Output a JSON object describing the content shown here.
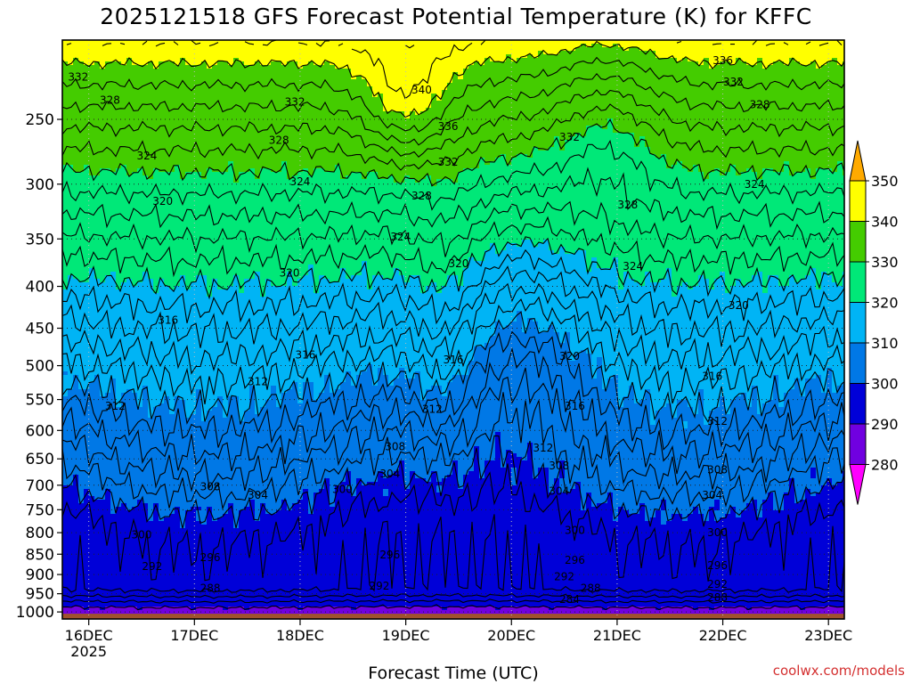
{
  "chart_data": {
    "type": "heatmap",
    "title": "2025121518 GFS Forecast Potential Temperature (K) for KFFC",
    "xlabel": "Forecast Time (UTC)",
    "ylabel": "",
    "x_ticks": [
      "16DEC",
      "17DEC",
      "18DEC",
      "19DEC",
      "20DEC",
      "21DEC",
      "22DEC",
      "23DEC"
    ],
    "x_year": "2025",
    "x_range_days": [
      -0.25,
      7.15
    ],
    "y_ticks": [
      250,
      300,
      350,
      400,
      450,
      500,
      550,
      600,
      650,
      700,
      750,
      800,
      850,
      900,
      950,
      1000
    ],
    "y_range": [
      200,
      1020
    ],
    "y_scale": "log",
    "grid": true,
    "colorbar": {
      "labels": [
        350,
        340,
        330,
        320,
        310,
        300,
        290,
        280
      ],
      "position": "right",
      "colors": [
        "#ffaa00",
        "#ffff00",
        "#44cc00",
        "#00e878",
        "#00b4f5",
        "#0078e6",
        "#0000d8",
        "#7000e0",
        "#ff00ff"
      ]
    },
    "ground_color": "#a0522d",
    "contour_interval_K": 2,
    "contour_labels": [
      {
        "value": "336",
        "day": 6.0,
        "p": 212
      },
      {
        "value": "332",
        "day": 6.1,
        "p": 225
      },
      {
        "value": "328",
        "day": 6.35,
        "p": 240
      },
      {
        "value": "324",
        "day": 6.3,
        "p": 300
      },
      {
        "value": "320",
        "day": 6.15,
        "p": 422
      },
      {
        "value": "316",
        "day": 5.9,
        "p": 515
      },
      {
        "value": "312",
        "day": 5.95,
        "p": 585
      },
      {
        "value": "308",
        "day": 5.95,
        "p": 670
      },
      {
        "value": "304",
        "day": 5.9,
        "p": 720
      },
      {
        "value": "300",
        "day": 5.95,
        "p": 800
      },
      {
        "value": "296",
        "day": 5.95,
        "p": 878
      },
      {
        "value": "292",
        "day": 5.95,
        "p": 925
      },
      {
        "value": "288",
        "day": 5.95,
        "p": 960
      },
      {
        "value": "332",
        "day": -0.1,
        "p": 222
      },
      {
        "value": "328",
        "day": 0.2,
        "p": 237
      },
      {
        "value": "324",
        "day": 0.55,
        "p": 277
      },
      {
        "value": "320",
        "day": 0.7,
        "p": 315
      },
      {
        "value": "316",
        "day": 0.75,
        "p": 440
      },
      {
        "value": "312",
        "day": 0.25,
        "p": 560
      },
      {
        "value": "300",
        "day": 0.5,
        "p": 805
      },
      {
        "value": "292",
        "day": 0.6,
        "p": 880
      },
      {
        "value": "308",
        "day": 1.15,
        "p": 703
      },
      {
        "value": "304",
        "day": 1.6,
        "p": 720
      },
      {
        "value": "296",
        "day": 1.15,
        "p": 858
      },
      {
        "value": "288",
        "day": 1.15,
        "p": 935
      },
      {
        "value": "332",
        "day": 1.95,
        "p": 238
      },
      {
        "value": "328",
        "day": 1.8,
        "p": 265
      },
      {
        "value": "324",
        "day": 2.0,
        "p": 298
      },
      {
        "value": "320",
        "day": 1.9,
        "p": 385
      },
      {
        "value": "316",
        "day": 2.05,
        "p": 485
      },
      {
        "value": "312",
        "day": 1.6,
        "p": 523
      },
      {
        "value": "300",
        "day": 2.4,
        "p": 708
      },
      {
        "value": "340",
        "day": 3.15,
        "p": 230
      },
      {
        "value": "336",
        "day": 3.4,
        "p": 255
      },
      {
        "value": "332",
        "day": 3.4,
        "p": 282
      },
      {
        "value": "328",
        "day": 3.15,
        "p": 310
      },
      {
        "value": "324",
        "day": 2.95,
        "p": 348
      },
      {
        "value": "320",
        "day": 3.5,
        "p": 375
      },
      {
        "value": "316",
        "day": 3.45,
        "p": 492
      },
      {
        "value": "312",
        "day": 3.25,
        "p": 565
      },
      {
        "value": "308",
        "day": 2.9,
        "p": 628
      },
      {
        "value": "304",
        "day": 2.85,
        "p": 678
      },
      {
        "value": "296",
        "day": 2.85,
        "p": 852
      },
      {
        "value": "292",
        "day": 2.75,
        "p": 930
      },
      {
        "value": "332",
        "day": 4.55,
        "p": 263
      },
      {
        "value": "328",
        "day": 5.1,
        "p": 318
      },
      {
        "value": "324",
        "day": 5.15,
        "p": 378
      },
      {
        "value": "320",
        "day": 4.55,
        "p": 487
      },
      {
        "value": "316",
        "day": 4.6,
        "p": 560
      },
      {
        "value": "312",
        "day": 4.3,
        "p": 630
      },
      {
        "value": "308",
        "day": 4.45,
        "p": 663
      },
      {
        "value": "304",
        "day": 4.45,
        "p": 712
      },
      {
        "value": "300",
        "day": 4.6,
        "p": 795
      },
      {
        "value": "296",
        "day": 4.6,
        "p": 865
      },
      {
        "value": "292",
        "day": 4.5,
        "p": 905
      },
      {
        "value": "288",
        "day": 4.75,
        "p": 935
      },
      {
        "value": "284",
        "day": 4.55,
        "p": 965
      }
    ]
  },
  "credit": "coolwx.com/models"
}
